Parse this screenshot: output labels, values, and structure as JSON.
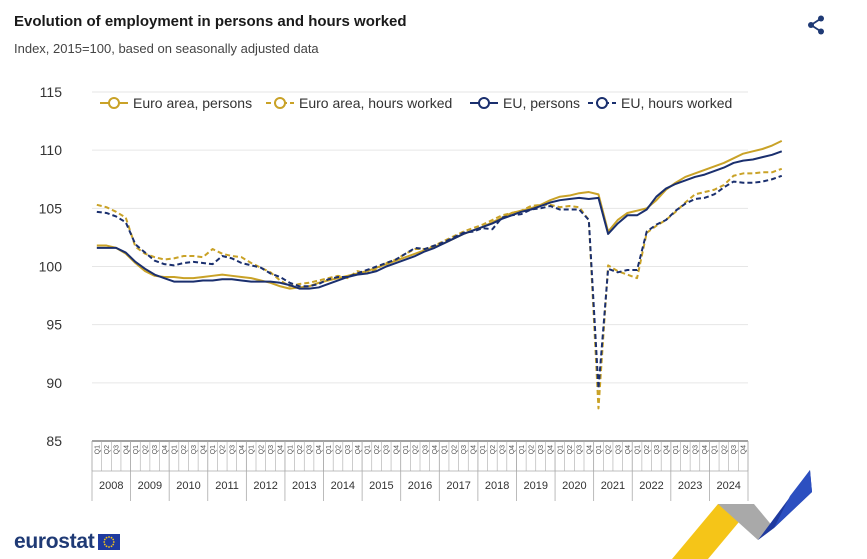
{
  "header": {
    "title": "Evolution of employment in persons and hours worked",
    "subtitle": "Index, 2015=100, based on seasonally adjusted data"
  },
  "branding": {
    "logo_text": "eurostat",
    "share_icon": "share-icon",
    "flag_icon": "eu-flag-icon"
  },
  "colors": {
    "euro_area": "#c9a227",
    "eu": "#1a2f6e",
    "grid": "#e6e6e6",
    "axis": "#444444"
  },
  "chart_data": {
    "type": "line",
    "title": "Evolution of employment in persons and hours worked",
    "subtitle": "Index, 2015=100, based on seasonally adjusted data",
    "ylim": [
      85,
      115
    ],
    "yticks": [
      85,
      90,
      95,
      100,
      105,
      110,
      115
    ],
    "grid": true,
    "legend_position": "top",
    "x_start_year": 2008,
    "years": [
      "2008",
      "2009",
      "2010",
      "2011",
      "2012",
      "2013",
      "2014",
      "2015",
      "2016",
      "2017",
      "2018",
      "2019",
      "2020",
      "2021",
      "2022",
      "2023",
      "2024"
    ],
    "quarter_labels": [
      "Q1",
      "Q2",
      "Q3",
      "Q4"
    ],
    "series": [
      {
        "name": "Euro area, persons",
        "color": "#c9a227",
        "dash": false,
        "values": [
          101.8,
          101.8,
          101.6,
          101.1,
          100.3,
          99.6,
          99.2,
          99.1,
          99.1,
          99.0,
          99.0,
          99.1,
          99.2,
          99.3,
          99.2,
          99.1,
          99.0,
          98.8,
          98.6,
          98.3,
          98.1,
          98.2,
          98.3,
          98.6,
          98.8,
          99.0,
          99.2,
          99.4,
          99.6,
          99.9,
          100.2,
          100.5,
          100.8,
          101.1,
          101.4,
          101.7,
          102.0,
          102.4,
          102.8,
          103.1,
          103.4,
          103.8,
          104.2,
          104.6,
          104.8,
          105.0,
          105.3,
          105.7,
          106.0,
          106.1,
          106.3,
          106.4,
          106.2,
          103.0,
          104.0,
          104.6,
          104.8,
          105.0,
          105.7,
          106.6,
          107.2,
          107.7,
          108.0,
          108.3,
          108.6,
          108.9,
          109.3,
          109.7,
          109.9,
          110.1,
          110.4,
          110.8
        ]
      },
      {
        "name": "Euro area, hours worked",
        "color": "#c9a227",
        "dash": true,
        "values": [
          105.3,
          105.1,
          104.7,
          104.2,
          101.7,
          101.1,
          100.8,
          100.6,
          100.7,
          100.9,
          100.9,
          100.8,
          101.5,
          101.1,
          100.9,
          100.8,
          100.3,
          99.9,
          99.5,
          98.8,
          98.3,
          98.5,
          98.6,
          98.8,
          99.0,
          99.2,
          99.0,
          99.6,
          99.4,
          99.8,
          100.3,
          100.6,
          101.1,
          101.5,
          101.5,
          101.8,
          102.2,
          102.6,
          103.0,
          103.3,
          103.6,
          104.0,
          104.4,
          104.6,
          104.8,
          105.2,
          105.3,
          105.3,
          105.1,
          105.2,
          105.1,
          104.0,
          87.8,
          100.1,
          99.6,
          99.3,
          99.0,
          102.9,
          103.5,
          104.0,
          104.7,
          105.5,
          106.2,
          106.4,
          106.6,
          107.0,
          107.8,
          108.0,
          108.0,
          108.1,
          108.1,
          108.4
        ]
      },
      {
        "name": "EU, persons",
        "color": "#1a2f6e",
        "dash": false,
        "values": [
          101.6,
          101.6,
          101.6,
          101.2,
          100.4,
          99.8,
          99.3,
          99.0,
          98.7,
          98.7,
          98.7,
          98.8,
          98.8,
          98.9,
          98.9,
          98.8,
          98.7,
          98.7,
          98.7,
          98.6,
          98.4,
          98.1,
          98.1,
          98.2,
          98.5,
          98.8,
          99.1,
          99.3,
          99.4,
          99.6,
          100.0,
          100.3,
          100.6,
          100.9,
          101.3,
          101.6,
          102.0,
          102.4,
          102.8,
          103.1,
          103.4,
          103.7,
          104.1,
          104.4,
          104.7,
          104.9,
          105.2,
          105.5,
          105.7,
          105.8,
          105.9,
          105.8,
          105.9,
          102.8,
          103.7,
          104.4,
          104.4,
          104.9,
          106.0,
          106.7,
          107.1,
          107.4,
          107.7,
          107.9,
          108.2,
          108.5,
          108.9,
          109.1,
          109.2,
          109.4,
          109.6,
          109.9
        ]
      },
      {
        "name": "EU, hours worked",
        "color": "#1a2f6e",
        "dash": true,
        "values": [
          104.7,
          104.6,
          104.3,
          103.8,
          101.9,
          101.2,
          100.5,
          100.2,
          100.1,
          100.3,
          100.4,
          100.3,
          100.2,
          100.9,
          100.7,
          100.3,
          100.1,
          99.9,
          99.4,
          99.1,
          98.6,
          98.3,
          98.3,
          98.5,
          98.9,
          99.1,
          99.1,
          99.4,
          99.7,
          100.0,
          100.3,
          100.6,
          101.1,
          101.6,
          101.5,
          101.8,
          102.1,
          102.5,
          102.9,
          103.0,
          103.3,
          103.2,
          104.2,
          104.4,
          104.5,
          104.9,
          105.0,
          105.2,
          104.9,
          104.9,
          104.9,
          104.0,
          89.5,
          99.8,
          99.5,
          99.7,
          99.7,
          103.0,
          103.6,
          104.0,
          104.8,
          105.4,
          105.8,
          105.9,
          106.2,
          106.8,
          107.3,
          107.2,
          107.2,
          107.3,
          107.5,
          107.8
        ]
      }
    ]
  }
}
